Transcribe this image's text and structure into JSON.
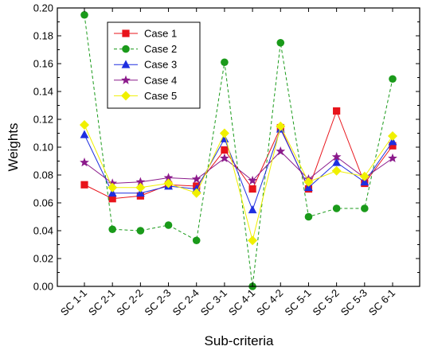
{
  "chart_data": {
    "type": "line",
    "title": "",
    "xlabel": "Sub-criteria",
    "ylabel": "Weights",
    "ylim": [
      0,
      0.2
    ],
    "yticks": [
      "0.00",
      "0.02",
      "0.04",
      "0.06",
      "0.08",
      "0.10",
      "0.12",
      "0.14",
      "0.16",
      "0.18",
      "0.20"
    ],
    "categories": [
      "SC 1-1",
      "SC 2-1",
      "SC 2-2",
      "SC 2-3",
      "SC 2-4",
      "SC 3-1",
      "SC 4-1",
      "SC 4-2",
      "SC 5-1",
      "SC 5-2",
      "SC 5-3",
      "SC 6-1"
    ],
    "legend_position": "top-left",
    "grid": false,
    "series": [
      {
        "name": "Case 1",
        "color": "#e8141b",
        "marker": "square",
        "dash": "solid",
        "values": [
          0.073,
          0.063,
          0.065,
          0.073,
          0.072,
          0.098,
          0.07,
          0.114,
          0.07,
          0.126,
          0.074,
          0.101
        ]
      },
      {
        "name": "Case 2",
        "color": "#1a9a1a",
        "marker": "circle",
        "dash": "dashed",
        "values": [
          0.195,
          0.041,
          0.04,
          0.044,
          0.033,
          0.161,
          0.0,
          0.175,
          0.05,
          0.056,
          0.056,
          0.149
        ]
      },
      {
        "name": "Case 3",
        "color": "#1f2fe0",
        "marker": "triangle",
        "dash": "solid",
        "values": [
          0.109,
          0.067,
          0.067,
          0.072,
          0.07,
          0.106,
          0.055,
          0.113,
          0.071,
          0.089,
          0.075,
          0.104
        ]
      },
      {
        "name": "Case 4",
        "color": "#8b1a8b",
        "marker": "star",
        "dash": "solid",
        "values": [
          0.089,
          0.074,
          0.075,
          0.078,
          0.077,
          0.092,
          0.076,
          0.097,
          0.077,
          0.093,
          0.078,
          0.092
        ]
      },
      {
        "name": "Case 5",
        "color": "#f0f000",
        "marker": "diamond",
        "dash": "solid",
        "values": [
          0.116,
          0.071,
          0.071,
          0.074,
          0.067,
          0.11,
          0.033,
          0.115,
          0.075,
          0.083,
          0.079,
          0.108
        ]
      }
    ]
  }
}
